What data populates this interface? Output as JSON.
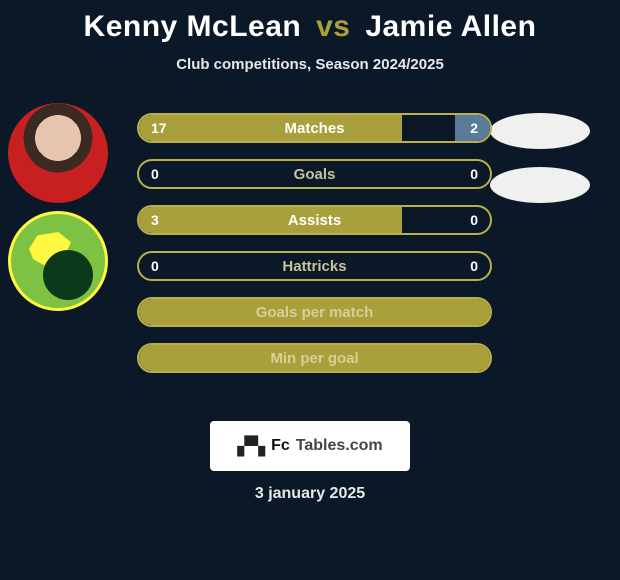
{
  "title": {
    "player1": "Kenny McLean",
    "vs": "vs",
    "player2": "Jamie Allen"
  },
  "subtitle": "Club competitions, Season 2024/2025",
  "colors": {
    "accent": "#a9a03b",
    "accent_border": "#b9b04b",
    "right_fill": "#5a7a9a",
    "row_bg_empty": "transparent",
    "text_on_fill": "#ffffff",
    "label_muted": "#c9c19a"
  },
  "stats": [
    {
      "label": "Matches",
      "left_value": "17",
      "right_value": "2",
      "left_pct": 75,
      "right_pct": 10,
      "show_values": true
    },
    {
      "label": "Goals",
      "left_value": "0",
      "right_value": "0",
      "left_pct": 0,
      "right_pct": 0,
      "show_values": true
    },
    {
      "label": "Assists",
      "left_value": "3",
      "right_value": "0",
      "left_pct": 75,
      "right_pct": 0,
      "show_values": true
    },
    {
      "label": "Hattricks",
      "left_value": "0",
      "right_value": "0",
      "left_pct": 0,
      "right_pct": 0,
      "show_values": true
    },
    {
      "label": "Goals per match",
      "left_value": "",
      "right_value": "",
      "left_pct": 100,
      "right_pct": 0,
      "show_values": false
    },
    {
      "label": "Min per goal",
      "left_value": "",
      "right_value": "",
      "left_pct": 100,
      "right_pct": 0,
      "show_values": false
    }
  ],
  "footer": {
    "fc": "Fc",
    "tables": "Tables.com"
  },
  "date": "3 january 2025"
}
